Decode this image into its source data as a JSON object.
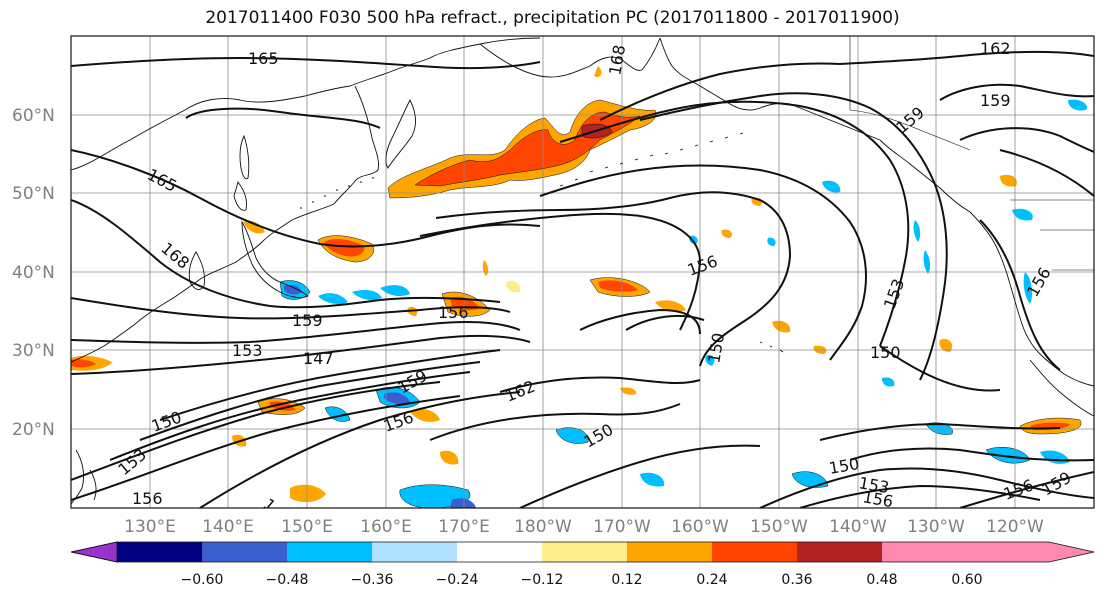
{
  "title": "2017011400 F030 500 hPa refract., precipitation PC (2017011800 - 2017011900)",
  "lat_labels": [
    "60°N",
    "50°N",
    "40°N",
    "30°N",
    "20°N"
  ],
  "lon_labels": [
    "130°E",
    "140°E",
    "150°E",
    "160°E",
    "170°E",
    "180°W",
    "170°W",
    "160°W",
    "150°W",
    "140°W",
    "130°W",
    "120°W"
  ],
  "contour_labels": [
    "165",
    "162",
    "159",
    "165",
    "168",
    "159",
    "153",
    "147",
    "156",
    "159",
    "156",
    "162",
    "150",
    "150",
    "153",
    "150",
    "150",
    "153",
    "156",
    "156",
    "159",
    "156",
    "153",
    "156",
    "150",
    "156",
    "168",
    "159",
    "147"
  ],
  "colorbar": {
    "ticks": [
      "−0.60",
      "−0.48",
      "−0.36",
      "−0.24",
      "−0.12",
      "0.12",
      "0.24",
      "0.36",
      "0.48",
      "0.60"
    ],
    "colors": [
      "#9932CC",
      "#000080",
      "#3A5FCD",
      "#00BFFF",
      "#B0E2FF",
      "#FFFFFF",
      "#FFEC8B",
      "#FFA500",
      "#FF4500",
      "#B22222",
      "#FF88B0"
    ]
  }
}
